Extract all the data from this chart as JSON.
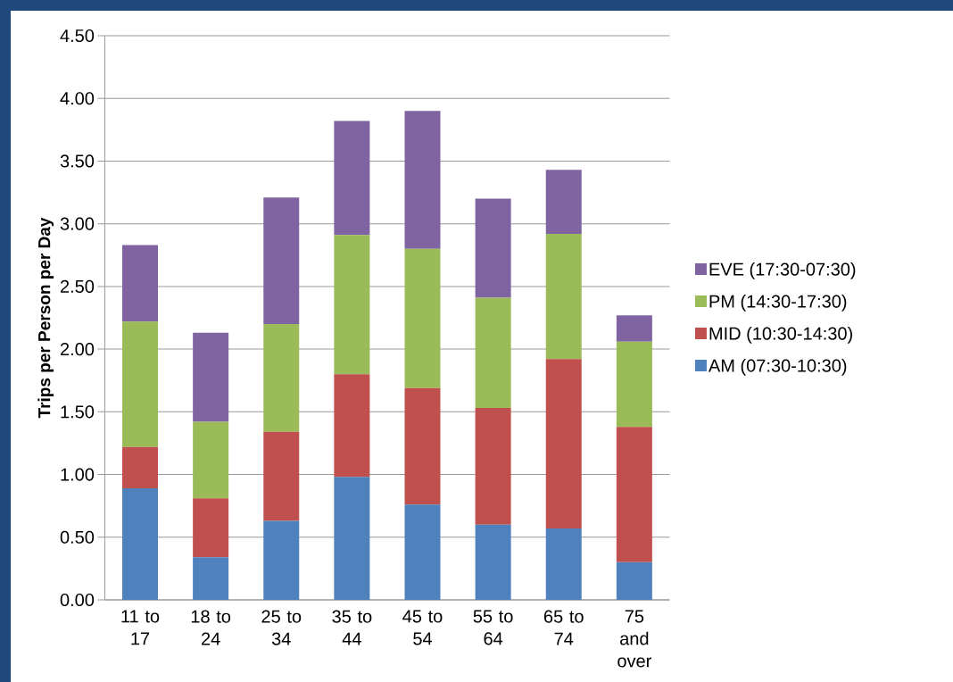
{
  "chart_data": {
    "type": "bar",
    "stacked": true,
    "ylabel": "Trips per Person per Day",
    "categories": [
      "11 to 17",
      "18 to 24",
      "25 to 34",
      "35 to 44",
      "45 to 54",
      "55 to 64",
      "65 to 74",
      "75 and over"
    ],
    "series": [
      {
        "name": "AM (07:30-10:30)",
        "color": "#4f81bd",
        "values": [
          0.89,
          0.34,
          0.63,
          0.98,
          0.76,
          0.6,
          0.57,
          0.3
        ]
      },
      {
        "name": "MID (10:30-14:30)",
        "color": "#c0504d",
        "values": [
          0.33,
          0.47,
          0.71,
          0.82,
          0.93,
          0.93,
          1.35,
          1.08
        ]
      },
      {
        "name": "PM (14:30-17:30)",
        "color": "#9bbb59",
        "values": [
          1.0,
          0.61,
          0.86,
          1.11,
          1.11,
          0.88,
          1.0,
          0.68
        ]
      },
      {
        "name": "EVE (17:30-07:30)",
        "color": "#8064a2",
        "values": [
          0.61,
          0.71,
          1.01,
          0.91,
          1.1,
          0.79,
          0.51,
          0.21
        ]
      }
    ],
    "ylim": [
      0,
      4.5
    ],
    "yticks": [
      {
        "value": 0,
        "label": "0.00"
      },
      {
        "value": 0.5,
        "label": "0.50"
      },
      {
        "value": 1,
        "label": "1.00"
      },
      {
        "value": 1.5,
        "label": "1.50"
      },
      {
        "value": 2,
        "label": "2.00"
      },
      {
        "value": 2.5,
        "label": "2.50"
      },
      {
        "value": 3,
        "label": "3.00"
      },
      {
        "value": 3.5,
        "label": "3.50"
      },
      {
        "value": 4,
        "label": "4.00"
      },
      {
        "value": 4.5,
        "label": "4.50"
      }
    ],
    "grid": "y",
    "legend": "right"
  }
}
